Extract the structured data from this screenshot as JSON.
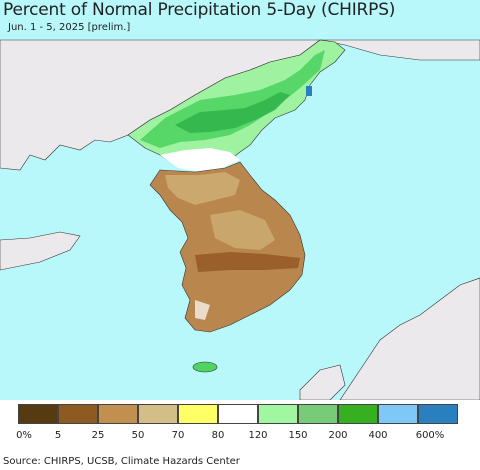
{
  "title": "Percent of Normal Precipitation 5-Day (CHIRPS)",
  "subtitle": "Jun. 1 - 5, 2025 [prelim.]",
  "source": "Source: CHIRPS, UCSB, Climate Hazards Center",
  "colors": {
    "sea": "#b8f7fa",
    "land_outside": "#ece9ed",
    "dark_brown": "#9a5f2b",
    "brown": "#b9874e",
    "tan": "#cdae74",
    "white": "#ffffff",
    "green_light": "#9ef2a0",
    "green": "#4fd462",
    "green_dark": "#2fb34a"
  },
  "legend": {
    "swatches": [
      {
        "color": "#553a12"
      },
      {
        "color": "#8d5a22"
      },
      {
        "color": "#c1904f"
      },
      {
        "color": "#d4be87"
      },
      {
        "color": "#ffff66"
      },
      {
        "color": "#ffffff"
      },
      {
        "color": "#a0f7a0"
      },
      {
        "color": "#78cc78"
      },
      {
        "color": "#36b020"
      },
      {
        "color": "#7ec8f7"
      },
      {
        "color": "#2a7fbe"
      }
    ],
    "labels": [
      "0%",
      "5",
      "25",
      "50",
      "70",
      "80",
      "120",
      "150",
      "200",
      "400",
      "600%"
    ]
  }
}
